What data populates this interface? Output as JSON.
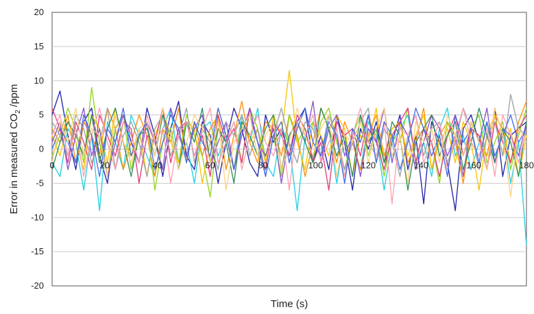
{
  "chart_data": {
    "type": "line",
    "title": "",
    "xlabel": "Time (s)",
    "ylabel_main": "Error in measured CO",
    "ylabel_sub": "2",
    "ylabel_tail": " /ppm",
    "xlim": [
      0,
      180
    ],
    "ylim": [
      -20,
      20
    ],
    "x_ticks": [
      0,
      20,
      40,
      60,
      80,
      100,
      120,
      140,
      160,
      180
    ],
    "y_ticks": [
      -20,
      -15,
      -10,
      -5,
      0,
      5,
      10,
      15,
      20
    ],
    "x_tick_labels": [
      "0",
      "20",
      "40",
      "60",
      "80",
      "100",
      "120",
      "140",
      "160",
      "180"
    ],
    "y_tick_labels": [
      "-20",
      "-15",
      "-10",
      "-5",
      "0",
      "5",
      "10",
      "15",
      "20"
    ],
    "grid": "horizontal",
    "legend": "none",
    "x_step": 3,
    "series": [
      {
        "color": "#1f1fa8",
        "values": [
          5,
          8.5,
          2,
          -3,
          4,
          6,
          -1,
          -5,
          3,
          5,
          1,
          -2,
          6,
          2,
          -4,
          3,
          7,
          -1,
          -3,
          4,
          2,
          -5,
          1,
          6,
          3,
          -2,
          -4,
          5,
          1,
          3,
          -1,
          4,
          6,
          -2,
          2,
          -3,
          5,
          1,
          -6,
          3,
          0,
          4,
          -2,
          1,
          5,
          -3,
          2,
          -8,
          4,
          1,
          -2,
          -9,
          3,
          5,
          1,
          -3,
          6,
          -4,
          2,
          3,
          4
        ]
      },
      {
        "color": "#1ecfe0",
        "values": [
          -2,
          -4,
          3,
          1,
          -6,
          2,
          -9,
          4,
          1,
          -3,
          5,
          2,
          -1,
          -4,
          3,
          6,
          -2,
          1,
          -5,
          3,
          4,
          -1,
          2,
          -3,
          5,
          1,
          6,
          -2,
          -4,
          3,
          1,
          -9,
          2,
          4,
          -1,
          3,
          -5,
          2,
          1,
          -3,
          4,
          2,
          -6,
          1,
          3,
          5,
          -2,
          1,
          -4,
          3,
          6,
          -1,
          2,
          -3,
          1,
          4,
          -2,
          3,
          -5,
          1,
          -14
        ]
      },
      {
        "color": "#ff8c00",
        "values": [
          3,
          1,
          5,
          -2,
          4,
          2,
          -1,
          6,
          3,
          -3,
          1,
          5,
          2,
          -4,
          3,
          1,
          6,
          -2,
          4,
          -1,
          3,
          5,
          -3,
          2,
          7,
          1,
          -2,
          4,
          3,
          -1,
          5,
          2,
          -4,
          1,
          6,
          3,
          -2,
          4,
          1,
          -3,
          2,
          5,
          -1,
          3,
          4,
          -2,
          1,
          6,
          -3,
          2,
          4,
          1,
          -5,
          3,
          2,
          -1,
          5,
          3,
          -2,
          4,
          7
        ]
      },
      {
        "color": "#8fd41a",
        "values": [
          -1,
          2,
          6,
          3,
          -2,
          9,
          1,
          -4,
          3,
          5,
          -3,
          2,
          4,
          -6,
          1,
          3,
          -2,
          5,
          2,
          -1,
          -7,
          3,
          1,
          4,
          -2,
          6,
          3,
          -1,
          2,
          -4,
          5,
          1,
          3,
          -2,
          4,
          6,
          1,
          -3,
          2,
          5,
          -1,
          3,
          -4,
          2,
          1,
          6,
          -2,
          3,
          1,
          -5,
          4,
          2,
          -1,
          3,
          5,
          -2,
          1,
          4,
          -3,
          2,
          6
        ]
      },
      {
        "color": "#f5c400",
        "values": [
          2,
          -1,
          4,
          1,
          -3,
          5,
          3,
          -2,
          6,
          1,
          -1,
          3,
          -4,
          2,
          5,
          1,
          -2,
          4,
          3,
          -5,
          1,
          6,
          2,
          -3,
          4,
          1,
          3,
          -2,
          5,
          2,
          11.5,
          1,
          -3,
          4,
          2,
          -1,
          5,
          3,
          -4,
          2,
          1,
          6,
          -2,
          3,
          4,
          -1,
          2,
          5,
          -3,
          1,
          3,
          -2,
          4,
          1,
          -6,
          2,
          5,
          -1,
          3,
          -4,
          2
        ]
      },
      {
        "color": "#e23a7a",
        "values": [
          6,
          3,
          -2,
          4,
          1,
          -3,
          5,
          2,
          -1,
          4,
          3,
          -5,
          2,
          1,
          6,
          -2,
          3,
          4,
          -1,
          2,
          -4,
          5,
          1,
          3,
          -2,
          6,
          1,
          -3,
          4,
          2,
          -1,
          5,
          3,
          -2,
          1,
          -6,
          4,
          2,
          3,
          -1,
          5,
          1,
          -3,
          2,
          4,
          6,
          -2,
          3,
          1,
          -4,
          2,
          5,
          -1,
          3,
          2,
          -3,
          4,
          1,
          -2,
          3,
          5
        ]
      },
      {
        "color": "#8a4fc8",
        "values": [
          1,
          4,
          -3,
          2,
          6,
          -1,
          3,
          -4,
          1,
          5,
          2,
          -2,
          4,
          1,
          -3,
          6,
          2,
          -1,
          3,
          5,
          -2,
          1,
          4,
          -3,
          2,
          6,
          1,
          -1,
          3,
          -5,
          2,
          4,
          1,
          7,
          -2,
          3,
          5,
          -1,
          2,
          -4,
          3,
          1,
          6,
          -2,
          4,
          2,
          -3,
          1,
          5,
          3,
          -1,
          2,
          -4,
          4,
          1,
          6,
          -2,
          3,
          2,
          -1,
          4
        ]
      },
      {
        "color": "#9aa0a6",
        "values": [
          4,
          2,
          -1,
          5,
          3,
          -2,
          1,
          6,
          -3,
          2,
          4,
          1,
          -4,
          3,
          5,
          -1,
          2,
          6,
          -2,
          3,
          1,
          -3,
          4,
          2,
          5,
          -1,
          3,
          -4,
          2,
          6,
          1,
          -2,
          4,
          3,
          -1,
          5,
          2,
          -3,
          1,
          4,
          6,
          -2,
          3,
          1,
          -4,
          2,
          5,
          -1,
          3,
          4,
          -2,
          1,
          6,
          3,
          -3,
          2,
          4,
          -1,
          8,
          3,
          2
        ]
      },
      {
        "color": "#2e8b57",
        "values": [
          -3,
          1,
          4,
          2,
          -1,
          5,
          -2,
          3,
          6,
          1,
          -4,
          2,
          3,
          -1,
          5,
          2,
          -3,
          4,
          1,
          6,
          -2,
          3,
          1,
          -5,
          4,
          2,
          -1,
          3,
          5,
          -3,
          2,
          4,
          1,
          -2,
          6,
          3,
          -1,
          2,
          -4,
          5,
          1,
          3,
          -2,
          4,
          2,
          -6,
          1,
          3,
          5,
          -1,
          2,
          4,
          -3,
          1,
          6,
          2,
          -2,
          3,
          1,
          -4,
          4
        ]
      },
      {
        "color": "#ff9db0",
        "values": [
          2,
          5,
          -1,
          3,
          -4,
          2,
          6,
          1,
          -3,
          4,
          2,
          -2,
          5,
          1,
          3,
          -5,
          2,
          4,
          -1,
          3,
          6,
          -2,
          1,
          4,
          -3,
          2,
          5,
          1,
          -1,
          3,
          -6,
          4,
          2,
          5,
          -2,
          1,
          3,
          -4,
          2,
          6,
          1,
          -1,
          4,
          -8,
          3,
          2,
          5,
          -2,
          1,
          4,
          -3,
          2,
          6,
          1,
          -1,
          3,
          -4,
          5,
          2,
          -2,
          3
        ]
      },
      {
        "color": "#4169e1",
        "values": [
          0,
          3,
          1,
          -2,
          5,
          2,
          -4,
          3,
          1,
          6,
          -1,
          2,
          4,
          -3,
          1,
          5,
          3,
          -2,
          4,
          1,
          -1,
          6,
          2,
          -3,
          3,
          5,
          1,
          -4,
          2,
          4,
          -2,
          3,
          6,
          1,
          -1,
          4,
          2,
          -5,
          3,
          1,
          5,
          -2,
          4,
          2,
          -3,
          1,
          6,
          3,
          -1,
          2,
          -4,
          5,
          1,
          3,
          -2,
          4,
          -1,
          2,
          5,
          1,
          3
        ]
      },
      {
        "color": "#ffd080",
        "values": [
          -2,
          4,
          1,
          6,
          -1,
          3,
          2,
          -4,
          5,
          1,
          -2,
          3,
          4,
          -1,
          6,
          2,
          -3,
          1,
          5,
          3,
          -2,
          4,
          -6,
          1,
          3,
          5,
          -1,
          2,
          4,
          -3,
          1,
          6,
          2,
          -1,
          3,
          5,
          -4,
          2,
          1,
          4,
          -2,
          3,
          6,
          -1,
          2,
          -5,
          4,
          1,
          3,
          -2,
          5,
          2,
          -1,
          4,
          1,
          -3,
          6,
          2,
          -7,
          3,
          1
        ]
      }
    ]
  }
}
